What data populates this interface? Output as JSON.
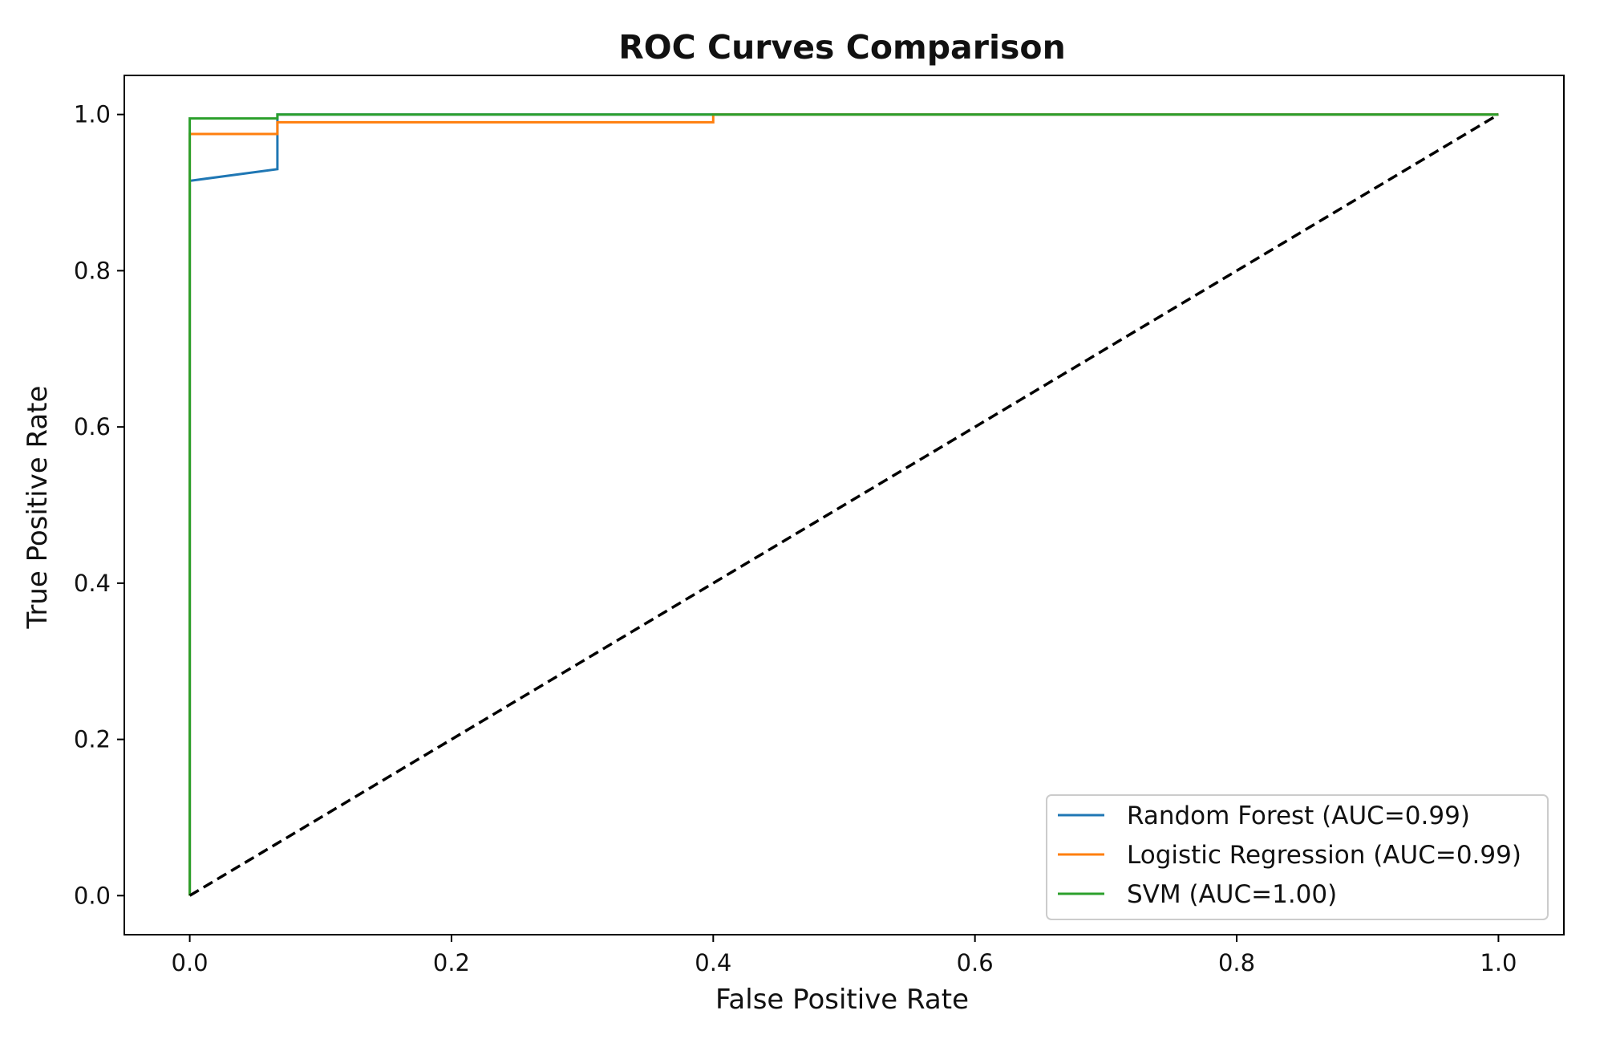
{
  "chart_data": {
    "type": "line",
    "title": "ROC Curves Comparison",
    "xlabel": "False Positive Rate",
    "ylabel": "True Positive Rate",
    "xlim": [
      -0.05,
      1.05
    ],
    "ylim": [
      -0.05,
      1.05
    ],
    "x_ticks": [
      "0.0",
      "0.2",
      "0.4",
      "0.6",
      "0.8",
      "1.0"
    ],
    "y_ticks": [
      "0.0",
      "0.2",
      "0.4",
      "0.6",
      "0.8",
      "1.0"
    ],
    "grid": false,
    "legend_position": "lower-right",
    "series": [
      {
        "name": "Random Forest (AUC=0.99)",
        "color": "#1f77b4",
        "style": "solid",
        "x": [
          0.0,
          0.0,
          0.067,
          0.067,
          1.0
        ],
        "y": [
          0.0,
          0.915,
          0.93,
          1.0,
          1.0
        ]
      },
      {
        "name": "Logistic Regression (AUC=0.99)",
        "color": "#ff7f0e",
        "style": "solid",
        "x": [
          0.0,
          0.0,
          0.067,
          0.067,
          0.4,
          0.4,
          1.0
        ],
        "y": [
          0.0,
          0.975,
          0.975,
          0.99,
          0.99,
          1.0,
          1.0
        ]
      },
      {
        "name": "SVM (AUC=1.00)",
        "color": "#2ca02c",
        "style": "solid",
        "x": [
          0.0,
          0.0,
          0.067,
          0.067,
          1.0
        ],
        "y": [
          0.0,
          0.995,
          0.995,
          1.0,
          1.0
        ]
      }
    ],
    "reference_line": {
      "color": "#000000",
      "style": "dashed",
      "x": [
        0.0,
        1.0
      ],
      "y": [
        0.0,
        1.0
      ]
    }
  }
}
